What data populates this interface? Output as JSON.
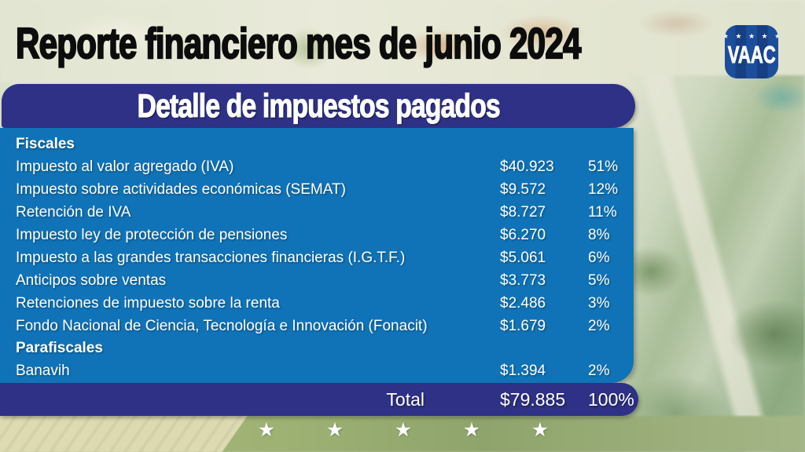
{
  "title": "Reporte financiero mes de junio 2024",
  "logo": {
    "stars": "★ ★ ★ ★ ★",
    "name": "VAAC"
  },
  "table": {
    "header": "Detalle de impuestos pagados",
    "rows": [
      {
        "type": "section",
        "label": "Fiscales"
      },
      {
        "type": "item",
        "label": "Impuesto al valor agregado (IVA)",
        "amount": "$40.923",
        "percent": "51%"
      },
      {
        "type": "item",
        "label": "Impuesto sobre actividades económicas (SEMAT)",
        "amount": "$9.572",
        "percent": "12%"
      },
      {
        "type": "item",
        "label": "Retención de IVA",
        "amount": "$8.727",
        "percent": "11%"
      },
      {
        "type": "item",
        "label": "Impuesto ley de protección de pensiones",
        "amount": "$6.270",
        "percent": "8%"
      },
      {
        "type": "item",
        "label": "Impuesto a las grandes transacciones financieras (I.G.T.F.)",
        "amount": "$5.061",
        "percent": "6%"
      },
      {
        "type": "item",
        "label": "Anticipos sobre ventas",
        "amount": "$3.773",
        "percent": "5%"
      },
      {
        "type": "item",
        "label": "Retenciones de impuesto sobre la renta",
        "amount": "$2.486",
        "percent": "3%"
      },
      {
        "type": "item",
        "label": "Fondo Nacional de Ciencia, Tecnología e Innovación (Fonacit)",
        "amount": "$1.679",
        "percent": "2%"
      },
      {
        "type": "section",
        "label": "Parafiscales"
      },
      {
        "type": "item",
        "label": "Banavih",
        "amount": "$1.394",
        "percent": "2%"
      }
    ],
    "total": {
      "label": "Total",
      "amount": "$79.885",
      "percent": "100%"
    }
  },
  "footer": {
    "star": "★",
    "count": 5
  },
  "colors": {
    "dark_blue": "#2e3185",
    "light_blue": "#1173b7",
    "logo_blue": "#1d4e9b",
    "title_black": "#0c0c0c",
    "text_white": "#ffffff"
  }
}
